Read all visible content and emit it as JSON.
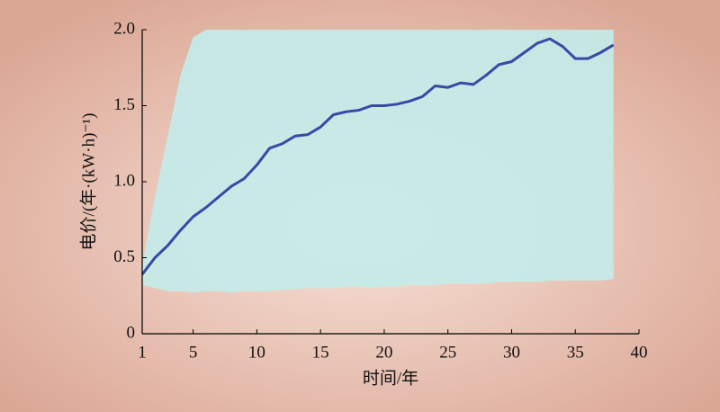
{
  "chart_data": {
    "type": "line",
    "xlabel": "时间/年",
    "ylabel": "电价/(年·(kW·h)⁻¹)",
    "x": [
      1,
      2,
      3,
      4,
      5,
      6,
      7,
      8,
      9,
      10,
      11,
      12,
      13,
      14,
      15,
      16,
      17,
      18,
      19,
      20,
      21,
      22,
      23,
      24,
      25,
      26,
      27,
      28,
      29,
      30,
      31,
      32,
      33,
      34,
      35,
      36,
      37,
      38
    ],
    "values": [
      0.39,
      0.5,
      0.58,
      0.68,
      0.77,
      0.83,
      0.9,
      0.97,
      1.02,
      1.11,
      1.22,
      1.25,
      1.3,
      1.31,
      1.36,
      1.44,
      1.46,
      1.47,
      1.5,
      1.5,
      1.51,
      1.53,
      1.56,
      1.63,
      1.62,
      1.65,
      1.64,
      1.7,
      1.77,
      1.79,
      1.85,
      1.91,
      1.94,
      1.89,
      1.81,
      1.81,
      1.85,
      1.9
    ],
    "color": "#3949a6",
    "band": {
      "color": "#c3ecea",
      "lower": [
        0.32,
        0.3,
        0.28,
        0.28,
        0.27,
        0.28,
        0.28,
        0.27,
        0.28,
        0.28,
        0.28,
        0.29,
        0.29,
        0.3,
        0.3,
        0.3,
        0.31,
        0.31,
        0.3,
        0.31,
        0.31,
        0.32,
        0.32,
        0.32,
        0.33,
        0.33,
        0.33,
        0.33,
        0.34,
        0.34,
        0.34,
        0.34,
        0.35,
        0.35,
        0.35,
        0.35,
        0.35,
        0.36
      ],
      "upper": [
        0.45,
        0.9,
        1.3,
        1.7,
        1.95,
        2,
        2,
        2,
        2,
        2,
        2,
        2,
        2,
        2,
        2,
        2,
        2,
        2,
        2,
        2,
        2,
        2,
        2,
        2,
        2,
        2,
        2,
        2,
        2,
        2,
        2,
        2,
        2,
        2,
        2,
        2,
        2,
        2
      ]
    },
    "xlim": [
      1,
      40
    ],
    "xticks": [
      1,
      5,
      10,
      15,
      20,
      25,
      30,
      35,
      40
    ],
    "ylim": [
      0,
      2
    ],
    "yticks": [
      0,
      0.5,
      {
        "value": 1,
        "label": "1.0"
      },
      1.5,
      {
        "value": 2,
        "label": "2.0"
      }
    ]
  }
}
